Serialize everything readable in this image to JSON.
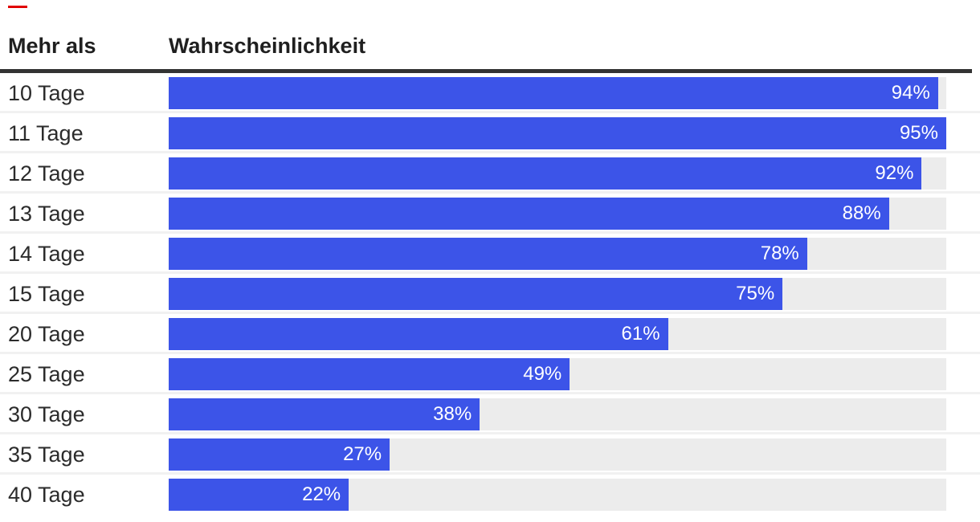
{
  "accent_mark_color": "#e10000",
  "header": {
    "label_column": "Mehr als",
    "value_column": "Wahrscheinlichkeit"
  },
  "colors": {
    "bar": "#3c54e8",
    "track": "#ececec",
    "rule": "#333333",
    "separator": "#f1f1f1"
  },
  "chart_data": {
    "type": "bar",
    "orientation": "horizontal",
    "title": "",
    "xlabel": "Mehr als",
    "ylabel": "Wahrscheinlichkeit",
    "categories": [
      "10 Tage",
      "11 Tage",
      "12 Tage",
      "13 Tage",
      "14 Tage",
      "15 Tage",
      "20 Tage",
      "25 Tage",
      "30 Tage",
      "35 Tage",
      "40 Tage"
    ],
    "values": [
      94,
      95,
      92,
      88,
      78,
      75,
      61,
      49,
      38,
      27,
      22
    ],
    "value_labels": [
      "94%",
      "95%",
      "92%",
      "88%",
      "78%",
      "75%",
      "61%",
      "49%",
      "38%",
      "27%",
      "22%"
    ],
    "value_label_position": "inside-end",
    "scale_max": 95,
    "grid": false,
    "legend": false
  }
}
